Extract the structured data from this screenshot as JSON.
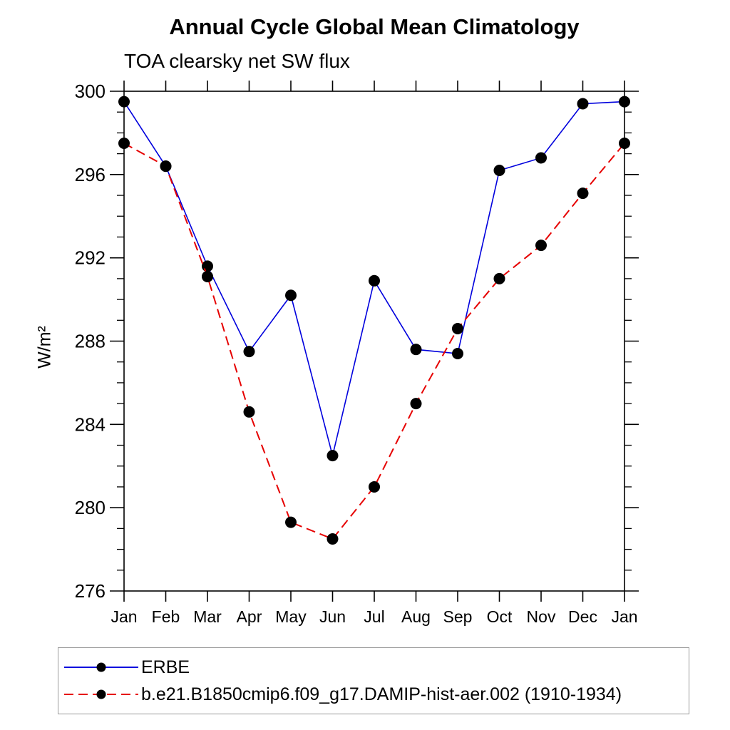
{
  "page": {
    "title": "Annual Cycle Global Mean Climatology",
    "subtitle": "TOA clearsky net SW flux"
  },
  "chart_data": {
    "type": "line",
    "title": "Annual Cycle Global Mean Climatology",
    "subtitle": "TOA clearsky net SW flux",
    "xlabel": "",
    "ylabel": "W/m²",
    "categories": [
      "Jan",
      "Feb",
      "Mar",
      "Apr",
      "May",
      "Jun",
      "Jul",
      "Aug",
      "Sep",
      "Oct",
      "Nov",
      "Dec",
      "Jan"
    ],
    "ylim": [
      276,
      300
    ],
    "ytick_major_step": 4,
    "ytick_minor_step": 1,
    "ytick_labels": [
      "276",
      "280",
      "284",
      "288",
      "292",
      "296",
      "300"
    ],
    "grid": false,
    "legend_position": "bottom",
    "marker": "filled-circle",
    "marker_color": "#000000",
    "series": [
      {
        "name": "ERBE",
        "color": "#0000dd",
        "style": "solid",
        "values": [
          299.5,
          296.4,
          291.6,
          287.5,
          290.2,
          282.5,
          290.9,
          287.6,
          287.4,
          296.2,
          296.8,
          299.4,
          299.5
        ]
      },
      {
        "name": "b.e21.B1850cmip6.f09_g17.DAMIP-hist-aer.002 (1910-1934)",
        "color": "#e60000",
        "style": "dashed",
        "values": [
          297.5,
          296.4,
          291.1,
          284.6,
          279.3,
          278.5,
          281.0,
          285.0,
          288.6,
          291.0,
          292.6,
          295.1,
          297.5
        ]
      }
    ]
  }
}
